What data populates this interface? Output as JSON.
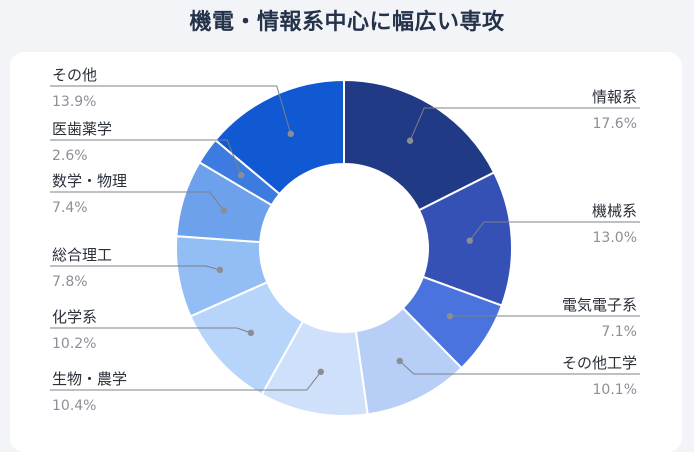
{
  "title": "機電・情報系中心に幅広い専攻",
  "chart_data": {
    "type": "pie",
    "donut": true,
    "legend": "none",
    "slices": [
      {
        "label": "情報系",
        "value": 17.6,
        "value_text": "17.6%",
        "color": "#213a86"
      },
      {
        "label": "機械系",
        "value": 13.0,
        "value_text": "13.0%",
        "color": "#3551b5"
      },
      {
        "label": "電気電子系",
        "value": 7.1,
        "value_text": "7.1%",
        "color": "#4a73de"
      },
      {
        "label": "その他工学",
        "value": 10.1,
        "value_text": "10.1%",
        "color": "#b7cff6"
      },
      {
        "label": "生物・農学",
        "value": 10.4,
        "value_text": "10.4%",
        "color": "#cfe0fa"
      },
      {
        "label": "化学系",
        "value": 10.2,
        "value_text": "10.2%",
        "color": "#b7d5fb"
      },
      {
        "label": "総合理工",
        "value": 7.8,
        "value_text": "7.8%",
        "color": "#92bdf5"
      },
      {
        "label": "数学・物理",
        "value": 7.4,
        "value_text": "7.4%",
        "color": "#6ea1ec"
      },
      {
        "label": "医歯薬学",
        "value": 2.6,
        "value_text": "2.6%",
        "color": "#3d7be0"
      },
      {
        "label": "その他",
        "value": 13.9,
        "value_text": "13.9%",
        "color": "#1158d3"
      }
    ]
  }
}
